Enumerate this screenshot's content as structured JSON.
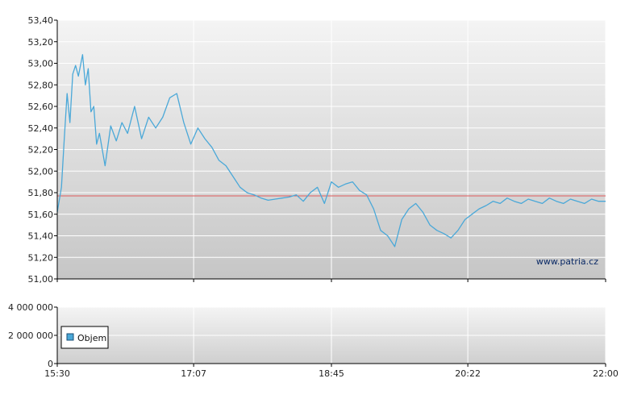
{
  "chart_data": [
    {
      "type": "line",
      "xlim": [
        "15:30",
        "22:00"
      ],
      "x_ticks": [
        "15:30",
        "17:07",
        "18:45",
        "20:22",
        "22:00"
      ],
      "ylim": [
        51.0,
        53.4
      ],
      "y_ticks": [
        "53,40",
        "53,20",
        "53,00",
        "52,80",
        "52,60",
        "52,40",
        "52,20",
        "52,00",
        "51,80",
        "51,60",
        "51,40",
        "51,20",
        "51,00"
      ],
      "grid": true,
      "reference_line": 51.77,
      "watermark": "www.patria.cz",
      "colors": {
        "line": "#4aa8d8",
        "reference": "#e0595a",
        "grid": "#ffffff"
      },
      "series": [
        {
          "x": [
            "15:30",
            "15:33",
            "15:35",
            "15:37",
            "15:39",
            "15:41",
            "15:43",
            "15:45",
            "15:48",
            "15:50",
            "15:52",
            "15:54",
            "15:56",
            "15:58",
            "16:00",
            "16:04",
            "16:08",
            "16:12",
            "16:16",
            "16:20",
            "16:25",
            "16:30",
            "16:35",
            "16:40",
            "16:45",
            "16:50",
            "16:55",
            "17:00",
            "17:05",
            "17:10",
            "17:15",
            "17:20",
            "17:25",
            "17:30",
            "17:35",
            "17:40",
            "17:45",
            "17:50",
            "17:55",
            "18:00",
            "18:05",
            "18:10",
            "18:15",
            "18:20",
            "18:25",
            "18:30",
            "18:35",
            "18:40",
            "18:45",
            "18:50",
            "18:55",
            "19:00",
            "19:05",
            "19:10",
            "19:15",
            "19:20",
            "19:25",
            "19:30",
            "19:35",
            "19:40",
            "19:45",
            "19:50",
            "19:55",
            "20:00",
            "20:05",
            "20:10",
            "20:15",
            "20:20",
            "20:25",
            "20:30",
            "20:35",
            "20:40",
            "20:45",
            "20:50",
            "20:55",
            "21:00",
            "21:05",
            "21:10",
            "21:15",
            "21:20",
            "21:25",
            "21:30",
            "21:35",
            "21:40",
            "21:45",
            "21:50",
            "21:55",
            "22:00"
          ],
          "values": [
            51.62,
            51.85,
            52.3,
            52.72,
            52.45,
            52.9,
            52.98,
            52.88,
            53.08,
            52.8,
            52.95,
            52.55,
            52.6,
            52.25,
            52.35,
            52.05,
            52.42,
            52.28,
            52.45,
            52.35,
            52.6,
            52.3,
            52.5,
            52.4,
            52.5,
            52.68,
            52.72,
            52.45,
            52.25,
            52.4,
            52.3,
            52.22,
            52.1,
            52.05,
            51.95,
            51.85,
            51.8,
            51.78,
            51.75,
            51.73,
            51.74,
            51.75,
            51.76,
            51.78,
            51.72,
            51.8,
            51.85,
            51.7,
            51.9,
            51.85,
            51.88,
            51.9,
            51.82,
            51.78,
            51.65,
            51.45,
            51.4,
            51.3,
            51.55,
            51.65,
            51.7,
            51.62,
            51.5,
            51.45,
            51.42,
            51.38,
            51.45,
            51.55,
            51.6,
            51.65,
            51.68,
            51.72,
            51.7,
            51.75,
            51.72,
            51.7,
            51.74,
            51.72,
            51.7,
            51.75,
            51.72,
            51.7,
            51.74,
            51.72,
            51.7,
            51.74,
            51.72,
            51.72
          ]
        }
      ]
    },
    {
      "type": "bar",
      "xlim": [
        "15:30",
        "22:00"
      ],
      "x_ticks": [
        "15:30",
        "17:07",
        "18:45",
        "20:22",
        "22:00"
      ],
      "ylim": [
        0,
        4000000
      ],
      "y_ticks": [
        "4 000 000",
        "2 000 000",
        "0"
      ],
      "grid": true,
      "legend": "Objem",
      "legend_placement": "left",
      "colors": {
        "bar": "#4aa8d8"
      },
      "series": [
        {
          "name": "Objem",
          "values": []
        }
      ]
    }
  ]
}
